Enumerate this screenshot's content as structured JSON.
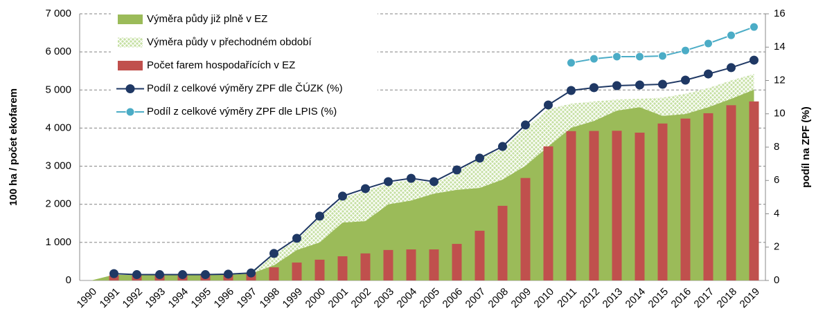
{
  "chart_data": {
    "type": "combo",
    "categories": [
      "1990",
      "1991",
      "1992",
      "1993",
      "1994",
      "1995",
      "1996",
      "1997",
      "1998",
      "1999",
      "2000",
      "2001",
      "2002",
      "2003",
      "2004",
      "2005",
      "2006",
      "2007",
      "2008",
      "2009",
      "2010",
      "2011",
      "2012",
      "2013",
      "2014",
      "2015",
      "2016",
      "2017",
      "2018",
      "2019"
    ],
    "ylabel": "100 ha / počet ekofarem",
    "y2label": "podíl na ZPF (%)",
    "ylim": [
      0,
      7000
    ],
    "yticks": [
      {
        "value": 0,
        "label": "0"
      },
      {
        "value": 1000,
        "label": "1 000"
      },
      {
        "value": 2000,
        "label": "2 000"
      },
      {
        "value": 3000,
        "label": "3 000"
      },
      {
        "value": 4000,
        "label": "4 000"
      },
      {
        "value": 5000,
        "label": "5 000"
      },
      {
        "value": 6000,
        "label": "6 000"
      },
      {
        "value": 7000,
        "label": "7 000"
      }
    ],
    "y2lim": [
      0,
      16
    ],
    "y2ticks": [
      0,
      2,
      4,
      6,
      8,
      10,
      12,
      14,
      16
    ],
    "grid": true,
    "legend": "upper left",
    "series": [
      {
        "name": "Výměra půdy již plně v EZ",
        "type": "area",
        "color": "#9bbb59",
        "values": [
          0,
          150,
          140,
          140,
          140,
          140,
          150,
          180,
          400,
          800,
          1000,
          1520,
          1560,
          2000,
          2100,
          2280,
          2380,
          2430,
          2650,
          3010,
          3520,
          4010,
          4190,
          4460,
          4550,
          4320,
          4370,
          4550,
          4770,
          5010
        ]
      },
      {
        "name": "Výměra půdy v přechodném období",
        "type": "area",
        "stacked": true,
        "color": "#c6e0a4",
        "values": [
          0,
          0,
          0,
          0,
          0,
          0,
          0,
          20,
          300,
          250,
          650,
          660,
          790,
          550,
          540,
          280,
          450,
          800,
          800,
          990,
          980,
          630,
          510,
          290,
          220,
          480,
          530,
          500,
          480,
          410
        ]
      },
      {
        "name": "Počet farem hospodařících v EZ",
        "type": "bar",
        "color": "#c0504d",
        "values": [
          null,
          130,
          140,
          140,
          180,
          180,
          180,
          210,
          345,
          470,
          545,
          635,
          710,
          800,
          815,
          815,
          960,
          1305,
          1960,
          2690,
          3520,
          3920,
          3925,
          3930,
          3880,
          4120,
          4250,
          4390,
          4600,
          4700
        ]
      },
      {
        "name": "Podíl z celkové výměry ZPF dle ČÚZK (%)",
        "type": "line",
        "axis": "y2",
        "color": "#1f3864",
        "values": [
          null,
          0.41,
          0.35,
          0.35,
          0.35,
          0.35,
          0.38,
          0.45,
          1.62,
          2.53,
          3.86,
          5.06,
          5.51,
          5.93,
          6.13,
          5.93,
          6.63,
          7.34,
          8.04,
          9.33,
          10.53,
          11.4,
          11.57,
          11.69,
          11.73,
          11.77,
          12.02,
          12.39,
          12.77,
          13.22
        ]
      },
      {
        "name": "Podíl z celkové výměry ZPF dle LPIS (%)",
        "type": "line",
        "axis": "y2",
        "color": "#4bacc6",
        "values": [
          null,
          null,
          null,
          null,
          null,
          null,
          null,
          null,
          null,
          null,
          null,
          null,
          null,
          null,
          null,
          null,
          null,
          null,
          null,
          null,
          null,
          13.06,
          13.3,
          13.43,
          13.43,
          13.47,
          13.8,
          14.22,
          14.71,
          15.21
        ]
      }
    ]
  }
}
